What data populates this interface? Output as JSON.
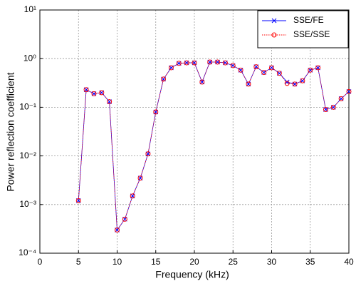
{
  "chart_data": {
    "type": "line",
    "xlabel": "Frequency (kHz)",
    "ylabel": "Power reflection coefficient",
    "x": [
      5,
      6,
      7,
      8,
      9,
      10,
      11,
      12,
      13,
      14,
      15,
      16,
      17,
      18,
      19,
      20,
      21,
      22,
      23,
      24,
      25,
      26,
      27,
      28,
      29,
      30,
      31,
      32,
      33,
      34,
      35,
      36,
      37,
      38,
      39,
      40
    ],
    "series": [
      {
        "name": "SSE/FE",
        "color": "#0000ff",
        "marker": "x",
        "linestyle": "solid",
        "values": [
          0.0012,
          0.23,
          0.19,
          0.2,
          0.13,
          0.0003,
          0.0005,
          0.0015,
          0.0035,
          0.011,
          0.08,
          0.38,
          0.65,
          0.8,
          0.82,
          0.82,
          0.33,
          0.85,
          0.85,
          0.82,
          0.72,
          0.58,
          0.3,
          0.68,
          0.52,
          0.65,
          0.5,
          0.33,
          0.3,
          0.35,
          0.58,
          0.65,
          0.09,
          0.1,
          0.15,
          0.21
        ]
      },
      {
        "name": "SSE/SSE",
        "color": "#ff0000",
        "marker": "o",
        "linestyle": "dotted",
        "values": [
          0.0012,
          0.23,
          0.19,
          0.2,
          0.13,
          0.0003,
          0.0005,
          0.0015,
          0.0035,
          0.011,
          0.08,
          0.38,
          0.65,
          0.8,
          0.82,
          0.82,
          0.33,
          0.85,
          0.85,
          0.82,
          0.72,
          0.58,
          0.3,
          0.68,
          0.52,
          0.65,
          0.5,
          0.31,
          0.3,
          0.35,
          0.58,
          0.65,
          0.09,
          0.1,
          0.15,
          0.21
        ]
      }
    ],
    "xlim": [
      0,
      40
    ],
    "xticks": [
      0,
      5,
      10,
      15,
      20,
      25,
      30,
      35,
      40
    ],
    "ylim": [
      0.0001,
      10
    ],
    "ylog": true,
    "yticks": [
      {
        "value": 0.0001,
        "label": "10⁻⁴"
      },
      {
        "value": 0.001,
        "label": "10⁻³"
      },
      {
        "value": 0.01,
        "label": "10⁻²"
      },
      {
        "value": 0.1,
        "label": "10⁻¹"
      },
      {
        "value": 1,
        "label": "10⁰"
      },
      {
        "value": 10,
        "label": "10¹"
      }
    ],
    "grid": true,
    "legend": "upper right"
  }
}
